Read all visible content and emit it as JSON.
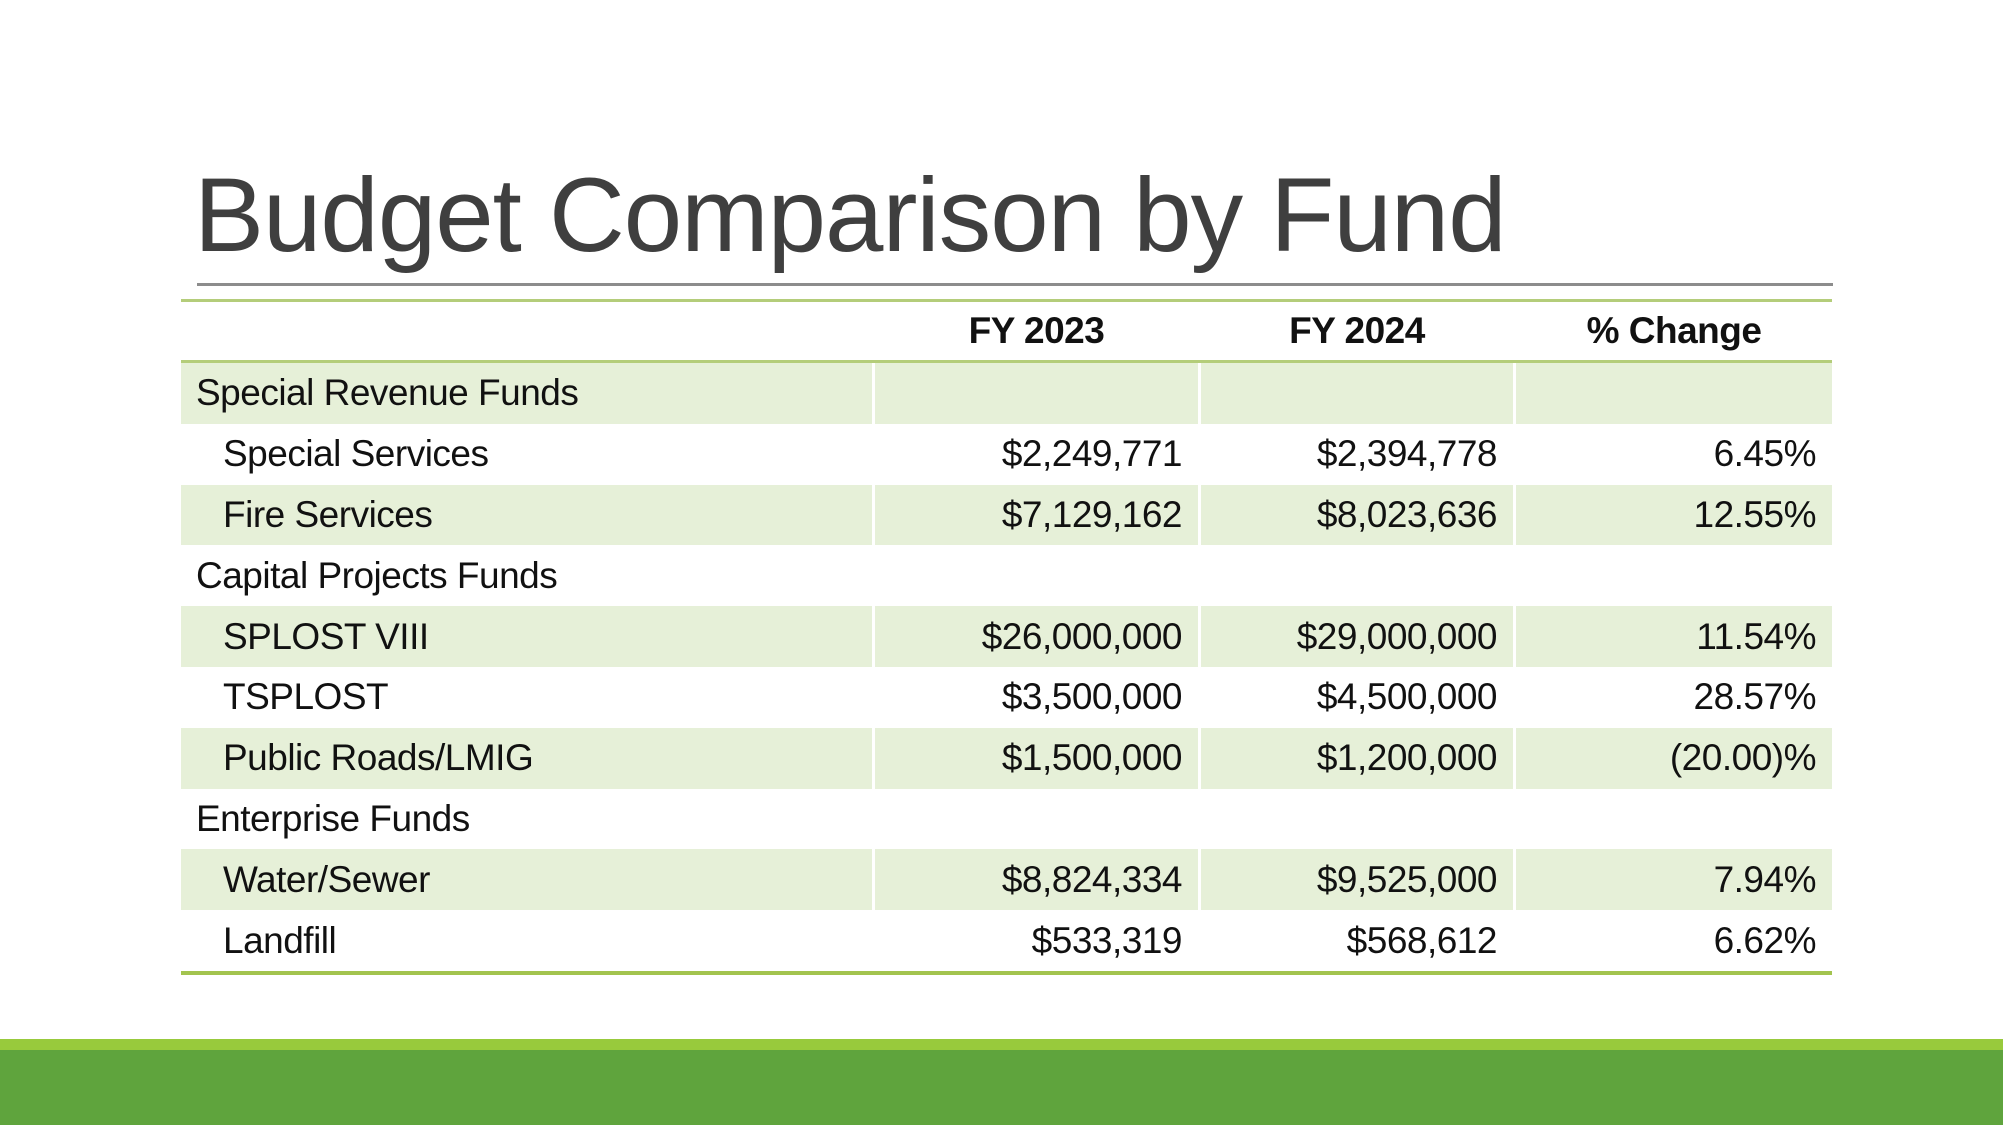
{
  "slide": {
    "title": "Budget Comparison by Fund"
  },
  "table": {
    "columns": [
      "",
      "FY 2023",
      "FY 2024",
      "% Change"
    ],
    "rows": [
      {
        "label": "Special Revenue Funds",
        "type": "category",
        "fy2023": "",
        "fy2024": "",
        "change": ""
      },
      {
        "label": "Special Services",
        "type": "item",
        "fy2023": "$2,249,771",
        "fy2024": "$2,394,778",
        "change": "6.45%"
      },
      {
        "label": "Fire Services",
        "type": "item",
        "fy2023": "$7,129,162",
        "fy2024": "$8,023,636",
        "change": "12.55%"
      },
      {
        "label": "Capital Projects Funds",
        "type": "category",
        "fy2023": "",
        "fy2024": "",
        "change": ""
      },
      {
        "label": "SPLOST VIII",
        "type": "item",
        "fy2023": "$26,000,000",
        "fy2024": "$29,000,000",
        "change": "11.54%"
      },
      {
        "label": "TSPLOST",
        "type": "item",
        "fy2023": "$3,500,000",
        "fy2024": "$4,500,000",
        "change": "28.57%"
      },
      {
        "label": "Public Roads/LMIG",
        "type": "item",
        "fy2023": "$1,500,000",
        "fy2024": "$1,200,000",
        "change": "(20.00)%"
      },
      {
        "label": "Enterprise Funds",
        "type": "category",
        "fy2023": "",
        "fy2024": "",
        "change": ""
      },
      {
        "label": "Water/Sewer",
        "type": "item",
        "fy2023": "$8,824,334",
        "fy2024": "$9,525,000",
        "change": "7.94%"
      },
      {
        "label": "Landfill",
        "type": "item",
        "fy2023": "$533,319",
        "fy2024": "$568,612",
        "change": "6.62%"
      }
    ]
  },
  "colors": {
    "title_text": "#3f3f3f",
    "body_text": "#111111",
    "title_rule_gray": "#8c8c8c",
    "table_rule_light_green": "#b4cd7a",
    "table_rule_bottom_green": "#a3c44f",
    "row_shade_green": "#e6f0d8",
    "footer_band_light": "#98ca3c",
    "footer_band_dark": "#5fa43d"
  }
}
